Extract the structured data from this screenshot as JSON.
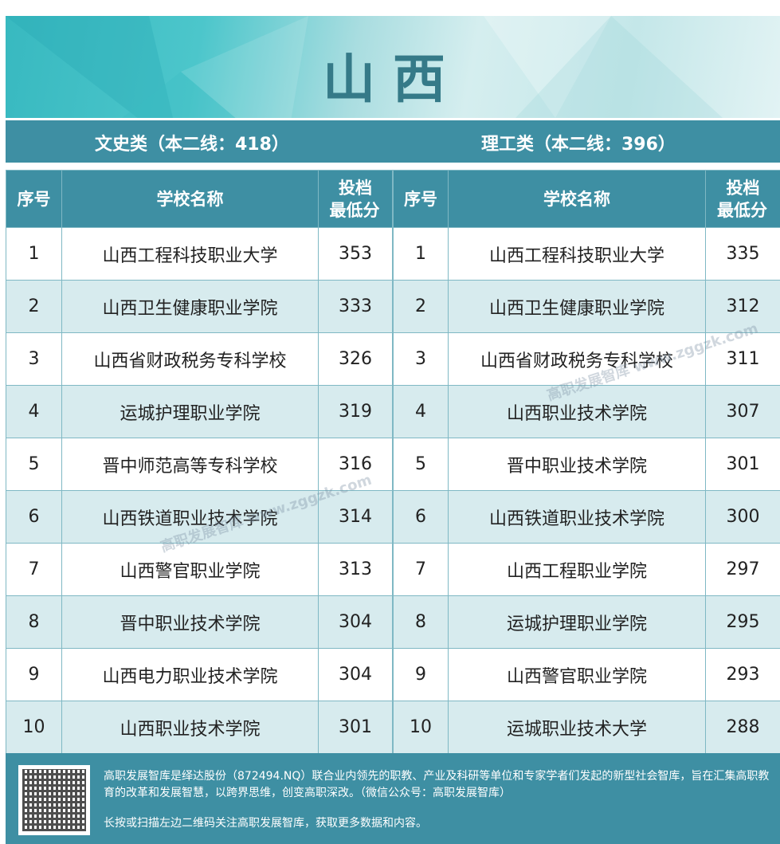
{
  "title": "山西",
  "left": {
    "heading": "文史类（本二线：418）",
    "columns": [
      "序号",
      "学校名称",
      "投档最低分"
    ],
    "rows": [
      [
        "1",
        "山西工程科技职业大学",
        "353"
      ],
      [
        "2",
        "山西卫生健康职业学院",
        "333"
      ],
      [
        "3",
        "山西省财政税务专科学校",
        "326"
      ],
      [
        "4",
        "运城护理职业学院",
        "319"
      ],
      [
        "5",
        "晋中师范高等专科学校",
        "316"
      ],
      [
        "6",
        "山西铁道职业技术学院",
        "314"
      ],
      [
        "7",
        "山西警官职业学院",
        "313"
      ],
      [
        "8",
        "晋中职业技术学院",
        "304"
      ],
      [
        "9",
        "山西电力职业技术学院",
        "304"
      ],
      [
        "10",
        "山西职业技术学院",
        "301"
      ]
    ]
  },
  "right": {
    "heading": "理工类（本二线：396）",
    "columns": [
      "序号",
      "学校名称",
      "投档最低分"
    ],
    "rows": [
      [
        "1",
        "山西工程科技职业大学",
        "335"
      ],
      [
        "2",
        "山西卫生健康职业学院",
        "312"
      ],
      [
        "3",
        "山西省财政税务专科学校",
        "311"
      ],
      [
        "4",
        "山西职业技术学院",
        "307"
      ],
      [
        "5",
        "晋中职业技术学院",
        "301"
      ],
      [
        "6",
        "山西铁道职业技术学院",
        "300"
      ],
      [
        "7",
        "山西工程职业学院",
        "297"
      ],
      [
        "8",
        "运城护理职业学院",
        "295"
      ],
      [
        "9",
        "山西警官职业学院",
        "293"
      ],
      [
        "10",
        "运城职业技术大学",
        "288"
      ]
    ]
  },
  "header_lines": {
    "score_line1": "投档",
    "score_line2": "最低分"
  },
  "watermark": "高职发展智库 www.zggzk.com",
  "footer": {
    "text1": "高职发展智库是绎达股份（872494.NQ）联合业内领先的职教、产业及科研等单位和专家学者们发起的新型社会智库，旨在汇集高职教育的改革和发展智慧，以跨界思维，创变高职深改。（微信公众号：高职发展智库）",
    "text2": "长按或扫描左边二维码关注高职发展智库，获取更多数据和内容。"
  },
  "colors": {
    "primary": "#3e8fa3",
    "alt_row": "#d7ebee",
    "title": "#357a88"
  }
}
